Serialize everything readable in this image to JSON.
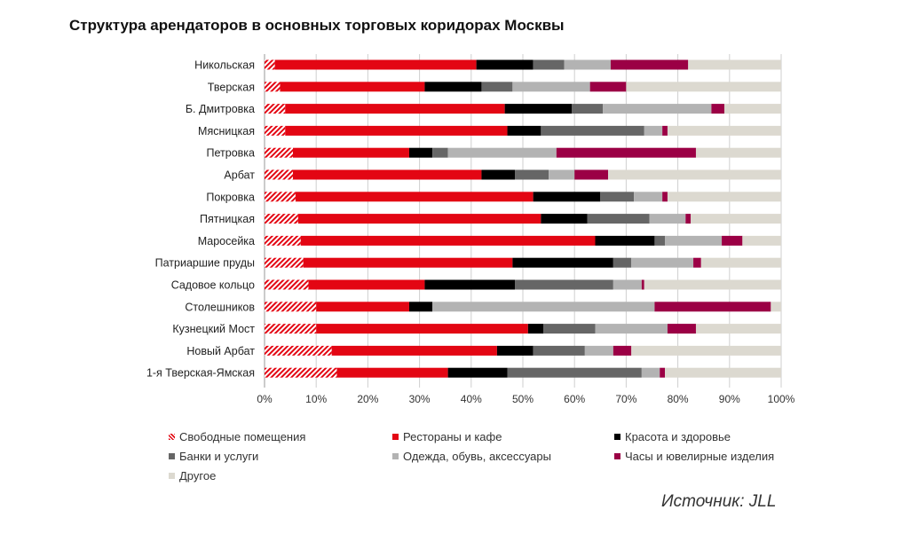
{
  "title": "Структура арендаторов в основных торговых коридорах Москвы",
  "source": "Источник: JLL",
  "chart_data": {
    "type": "bar",
    "orientation": "horizontal",
    "stacked": true,
    "categories": [
      "Никольская",
      "Тверская",
      "Б. Дмитровка",
      "Мясницкая",
      "Петровка",
      "Арбат",
      "Покровка",
      "Пятницкая",
      "Маросейка",
      "Патриаршие пруды",
      "Садовое кольцо",
      "Столешников",
      "Кузнецкий Мост",
      "Новый Арбат",
      "1-я Тверская-Ямская"
    ],
    "xlim": [
      0,
      100
    ],
    "xticks": [
      "0%",
      "10%",
      "20%",
      "30%",
      "40%",
      "50%",
      "60%",
      "70%",
      "80%",
      "90%",
      "100%"
    ],
    "grid": true,
    "legend_placement": "bottom",
    "series": [
      {
        "name": "Свободные помещения",
        "color": "#e30613",
        "pattern": "hatched",
        "values": [
          2,
          3,
          4,
          4,
          5.5,
          5.5,
          6,
          6.5,
          7,
          7.5,
          8.5,
          10,
          10,
          13,
          14
        ]
      },
      {
        "name": "Рестораны и кафе",
        "color": "#e30613",
        "values": [
          39,
          28,
          42.5,
          43,
          22.5,
          36.5,
          46,
          47,
          57,
          40.5,
          22.5,
          18,
          41,
          32,
          21.5
        ]
      },
      {
        "name": "Красота и здоровье",
        "color": "#000000",
        "values": [
          11,
          11,
          13,
          6.5,
          4.5,
          6.5,
          13,
          9,
          11.5,
          19.5,
          17.5,
          4.5,
          3,
          7,
          11.5
        ]
      },
      {
        "name": "Банки и услуги",
        "color": "#666666",
        "values": [
          6,
          6,
          6,
          20,
          3,
          6.5,
          6.5,
          12,
          2,
          3.5,
          19,
          0,
          10,
          10,
          26
        ]
      },
      {
        "name": "Одежда, обувь, аксессуары",
        "color": "#b3b3b3",
        "values": [
          9,
          15,
          21,
          3.5,
          21,
          5,
          5.5,
          7,
          11,
          12,
          5.5,
          43,
          14,
          5.5,
          3.5
        ]
      },
      {
        "name": "Часы и ювелирные изделия",
        "color": "#9b0045",
        "values": [
          15,
          7,
          2.5,
          1,
          27,
          6.5,
          1,
          1,
          4,
          1.5,
          0.5,
          22.5,
          5.5,
          3.5,
          1
        ]
      },
      {
        "name": "Другое",
        "color": "#dcd9d0",
        "values": [
          18,
          30,
          11,
          22,
          16.5,
          33.5,
          22,
          17.5,
          7.5,
          15.5,
          26.5,
          2,
          16.5,
          29,
          22.5
        ]
      }
    ]
  }
}
